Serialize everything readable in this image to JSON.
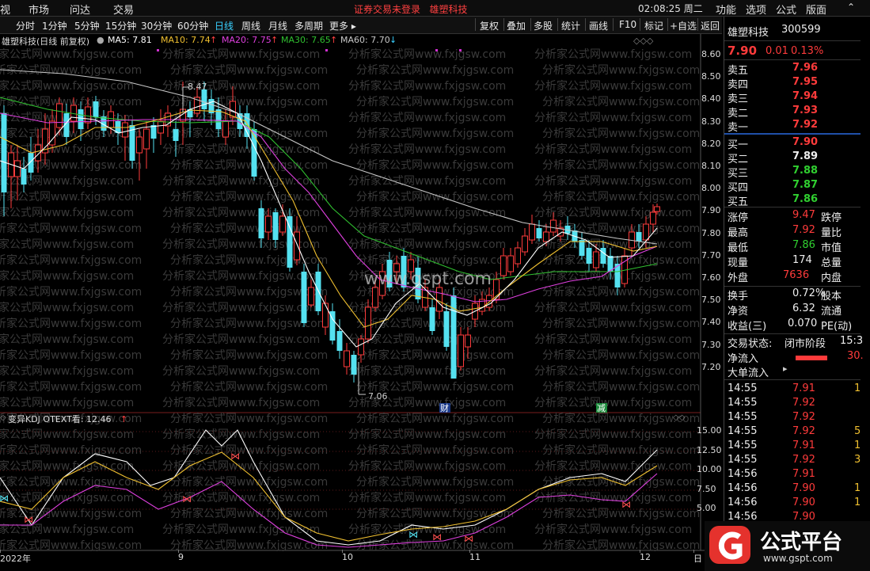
{
  "topmenu": {
    "left_items": [
      "视",
      "市场",
      "问达",
      "交易"
    ],
    "notice": "证券交易未登录",
    "stock_name": "雄塑科技",
    "clock": "02:08:25 周二",
    "right_items": [
      "功能",
      "选项",
      "公式",
      "版面"
    ]
  },
  "periods": [
    "分时",
    "1分钟",
    "5分钟",
    "15分钟",
    "30分钟",
    "60分钟",
    "日线",
    "周线",
    "月线",
    "多周期",
    "更多"
  ],
  "active_period": "日线",
  "tools": [
    "复权",
    "叠加",
    "多股",
    "统计",
    "画线",
    "F10",
    "标记",
    "+自选",
    "返回"
  ],
  "ma_header": {
    "title": "雄塑科技(日线 前复权)",
    "ma5": "MA5: 7.81",
    "ma10": "MA10: 7.74",
    "ma20": "MA20: 7.75",
    "ma30": "MA30: 7.65",
    "ma60": "MA60: 7.70"
  },
  "price_axis": [
    "8.60",
    "8.50",
    "8.40",
    "8.30",
    "8.20",
    "8.10",
    "8.00",
    "7.90",
    "7.80",
    "7.70",
    "7.60",
    "7.50",
    "7.40",
    "7.30",
    "7.20"
  ],
  "kdj_header": "变异KDJ OTEXT看: 12.46",
  "kdj_axis": [
    "15.00",
    "12.50",
    "10.00",
    "7.50",
    "5.00"
  ],
  "annotations": {
    "high": "8.47",
    "low": "7.06",
    "cai": "财",
    "jian": "减",
    "watermark_center": "www.gspt.com",
    "watermark_row": "分析家公式网www.fxjgsw.com"
  },
  "date_axis": [
    {
      "label": "2022年"
    },
    {
      "label": "9"
    },
    {
      "label": "10"
    },
    {
      "label": "11"
    },
    {
      "label": "12"
    },
    {
      "label": "日"
    }
  ],
  "quote": {
    "name": "雄塑科技",
    "code": "300599",
    "price": "7.90",
    "change": "0.01",
    "pct": "0.13%",
    "asks": [
      {
        "label": "卖五",
        "price": "7.96"
      },
      {
        "label": "卖四",
        "price": "7.95"
      },
      {
        "label": "卖三",
        "price": "7.94"
      },
      {
        "label": "卖二",
        "price": "7.93"
      },
      {
        "label": "卖一",
        "price": "7.92"
      }
    ],
    "bids": [
      {
        "label": "买一",
        "price": "7.90"
      },
      {
        "label": "买二",
        "price": "7.89"
      },
      {
        "label": "买三",
        "price": "7.88"
      },
      {
        "label": "买四",
        "price": "7.87"
      },
      {
        "label": "买五",
        "price": "7.86"
      }
    ],
    "stats": [
      {
        "l": "涨停",
        "v": "9.47",
        "r": "跌停"
      },
      {
        "l": "最高",
        "v": "7.92",
        "r": "量比"
      },
      {
        "l": "最低",
        "v": "7.86",
        "r": "市值"
      },
      {
        "l": "现量",
        "v": "174",
        "r": "总量"
      },
      {
        "l": "外盘",
        "v": "7636",
        "r": "内盘"
      }
    ],
    "stats2": [
      {
        "l": "换手",
        "v": "0.72%",
        "r": "股本"
      },
      {
        "l": "净资",
        "v": "6.32",
        "r": "流通"
      },
      {
        "l": "收益(三)",
        "v": "0.070",
        "r": "PE(动)"
      }
    ],
    "status_label": "交易状态:",
    "status_value": "闭市阶段",
    "status_time": "15:3",
    "netflow_label": "净流入",
    "netflow_value": "30.",
    "bigflow_label": "大单流入",
    "ticks": [
      {
        "t": "14:55",
        "p": "7.91",
        "v": "1"
      },
      {
        "t": "14:55",
        "p": "7.92",
        "v": ""
      },
      {
        "t": "14:55",
        "p": "7.92",
        "v": ""
      },
      {
        "t": "14:55",
        "p": "7.92",
        "v": "5"
      },
      {
        "t": "14:55",
        "p": "7.91",
        "v": "1"
      },
      {
        "t": "14:55",
        "p": "7.92",
        "v": "3"
      },
      {
        "t": "14:56",
        "p": "7.91",
        "v": ""
      },
      {
        "t": "14:56",
        "p": "7.90",
        "v": "1"
      },
      {
        "t": "14:56",
        "p": "7.90",
        "v": "1"
      },
      {
        "t": "14:56",
        "p": "7.90",
        "v": ""
      }
    ]
  },
  "logo": {
    "text": "公式平台",
    "url": "www.gspt.com"
  },
  "colors": {
    "up": "#ff3b3b",
    "down": "#54e1f0",
    "ma5": "#ffffff",
    "ma10": "#f0c030",
    "ma20": "#e040e0",
    "ma30": "#30c030",
    "ma60": "#c8c8c8",
    "accent": "#39d0ff"
  }
}
